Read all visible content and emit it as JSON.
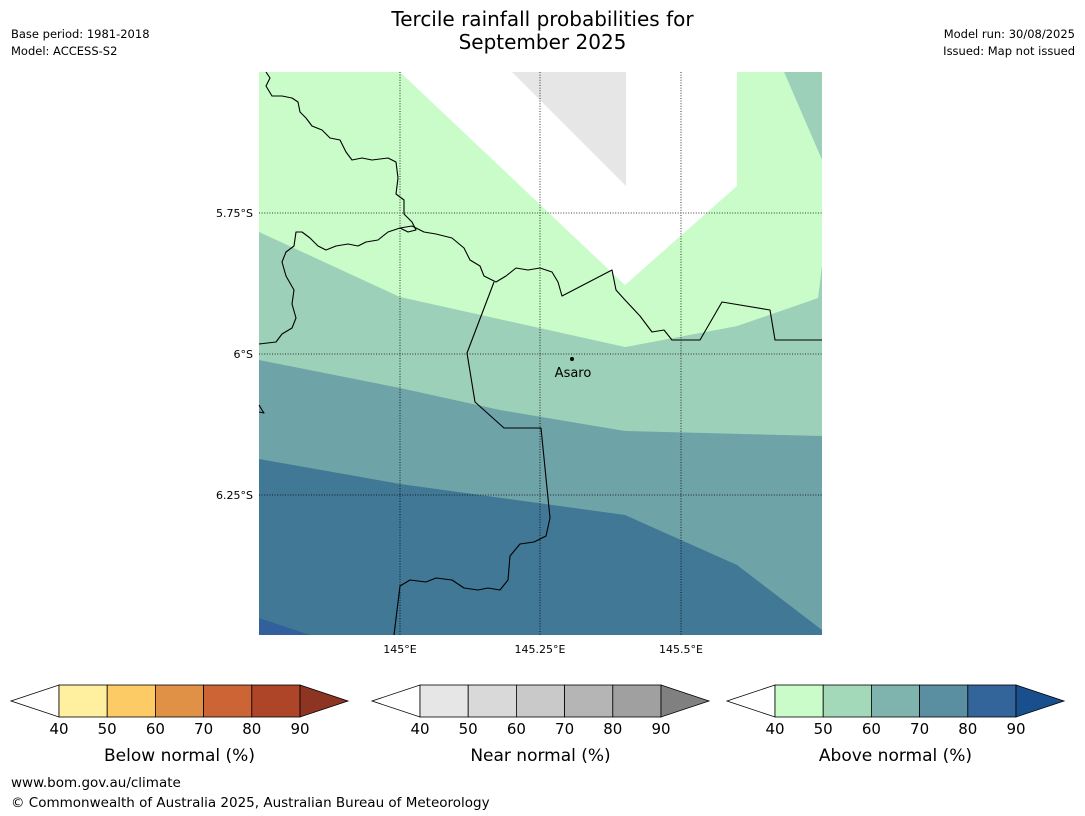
{
  "title": {
    "line1": "Tercile rainfall probabilities for",
    "line2": "September 2025"
  },
  "meta_left": {
    "base_period": "Base period: 1981-2018",
    "model": "Model: ACCESS-S2"
  },
  "meta_right": {
    "model_run": "Model run: 30/08/2025",
    "issued": "Issued: Map not issued"
  },
  "map": {
    "lat_labels": [
      "5.75°S",
      "6°S",
      "6.25°S"
    ],
    "lon_labels": [
      "145°E",
      "145.25°E",
      "145.5°E"
    ],
    "location": "Asaro",
    "colors": {
      "above_40": "#c9fcc9",
      "above_50": "#9dd0b9",
      "above_60": "#6ea3a8",
      "above_70": "#417896",
      "above_80": "#31609c",
      "near_40": "#e6e6e6"
    }
  },
  "legends": [
    {
      "name": "below",
      "title": "Below normal (%)",
      "ticks": [
        "40",
        "50",
        "60",
        "70",
        "80",
        "90"
      ],
      "colors": [
        "#fff0a0",
        "#fdcb65",
        "#e09145",
        "#cd6435",
        "#ae4528",
        "#8e3423"
      ]
    },
    {
      "name": "near",
      "title": "Near normal (%)",
      "ticks": [
        "40",
        "50",
        "60",
        "70",
        "80",
        "90"
      ],
      "colors": [
        "#e6e6e6",
        "#d9d9d9",
        "#c9c9c9",
        "#b5b5b5",
        "#a0a0a0",
        "#808080"
      ]
    },
    {
      "name": "above",
      "title": "Above normal (%)",
      "ticks": [
        "40",
        "50",
        "60",
        "70",
        "80",
        "90"
      ],
      "colors": [
        "#c9fcc9",
        "#a3d8b8",
        "#7fb3ad",
        "#5a8fa1",
        "#33649a",
        "#184f8c"
      ]
    }
  ],
  "footer": {
    "url": "www.bom.gov.au/climate",
    "copyright": "© Commonwealth of Australia 2025, Australian Bureau of Meteorology"
  }
}
